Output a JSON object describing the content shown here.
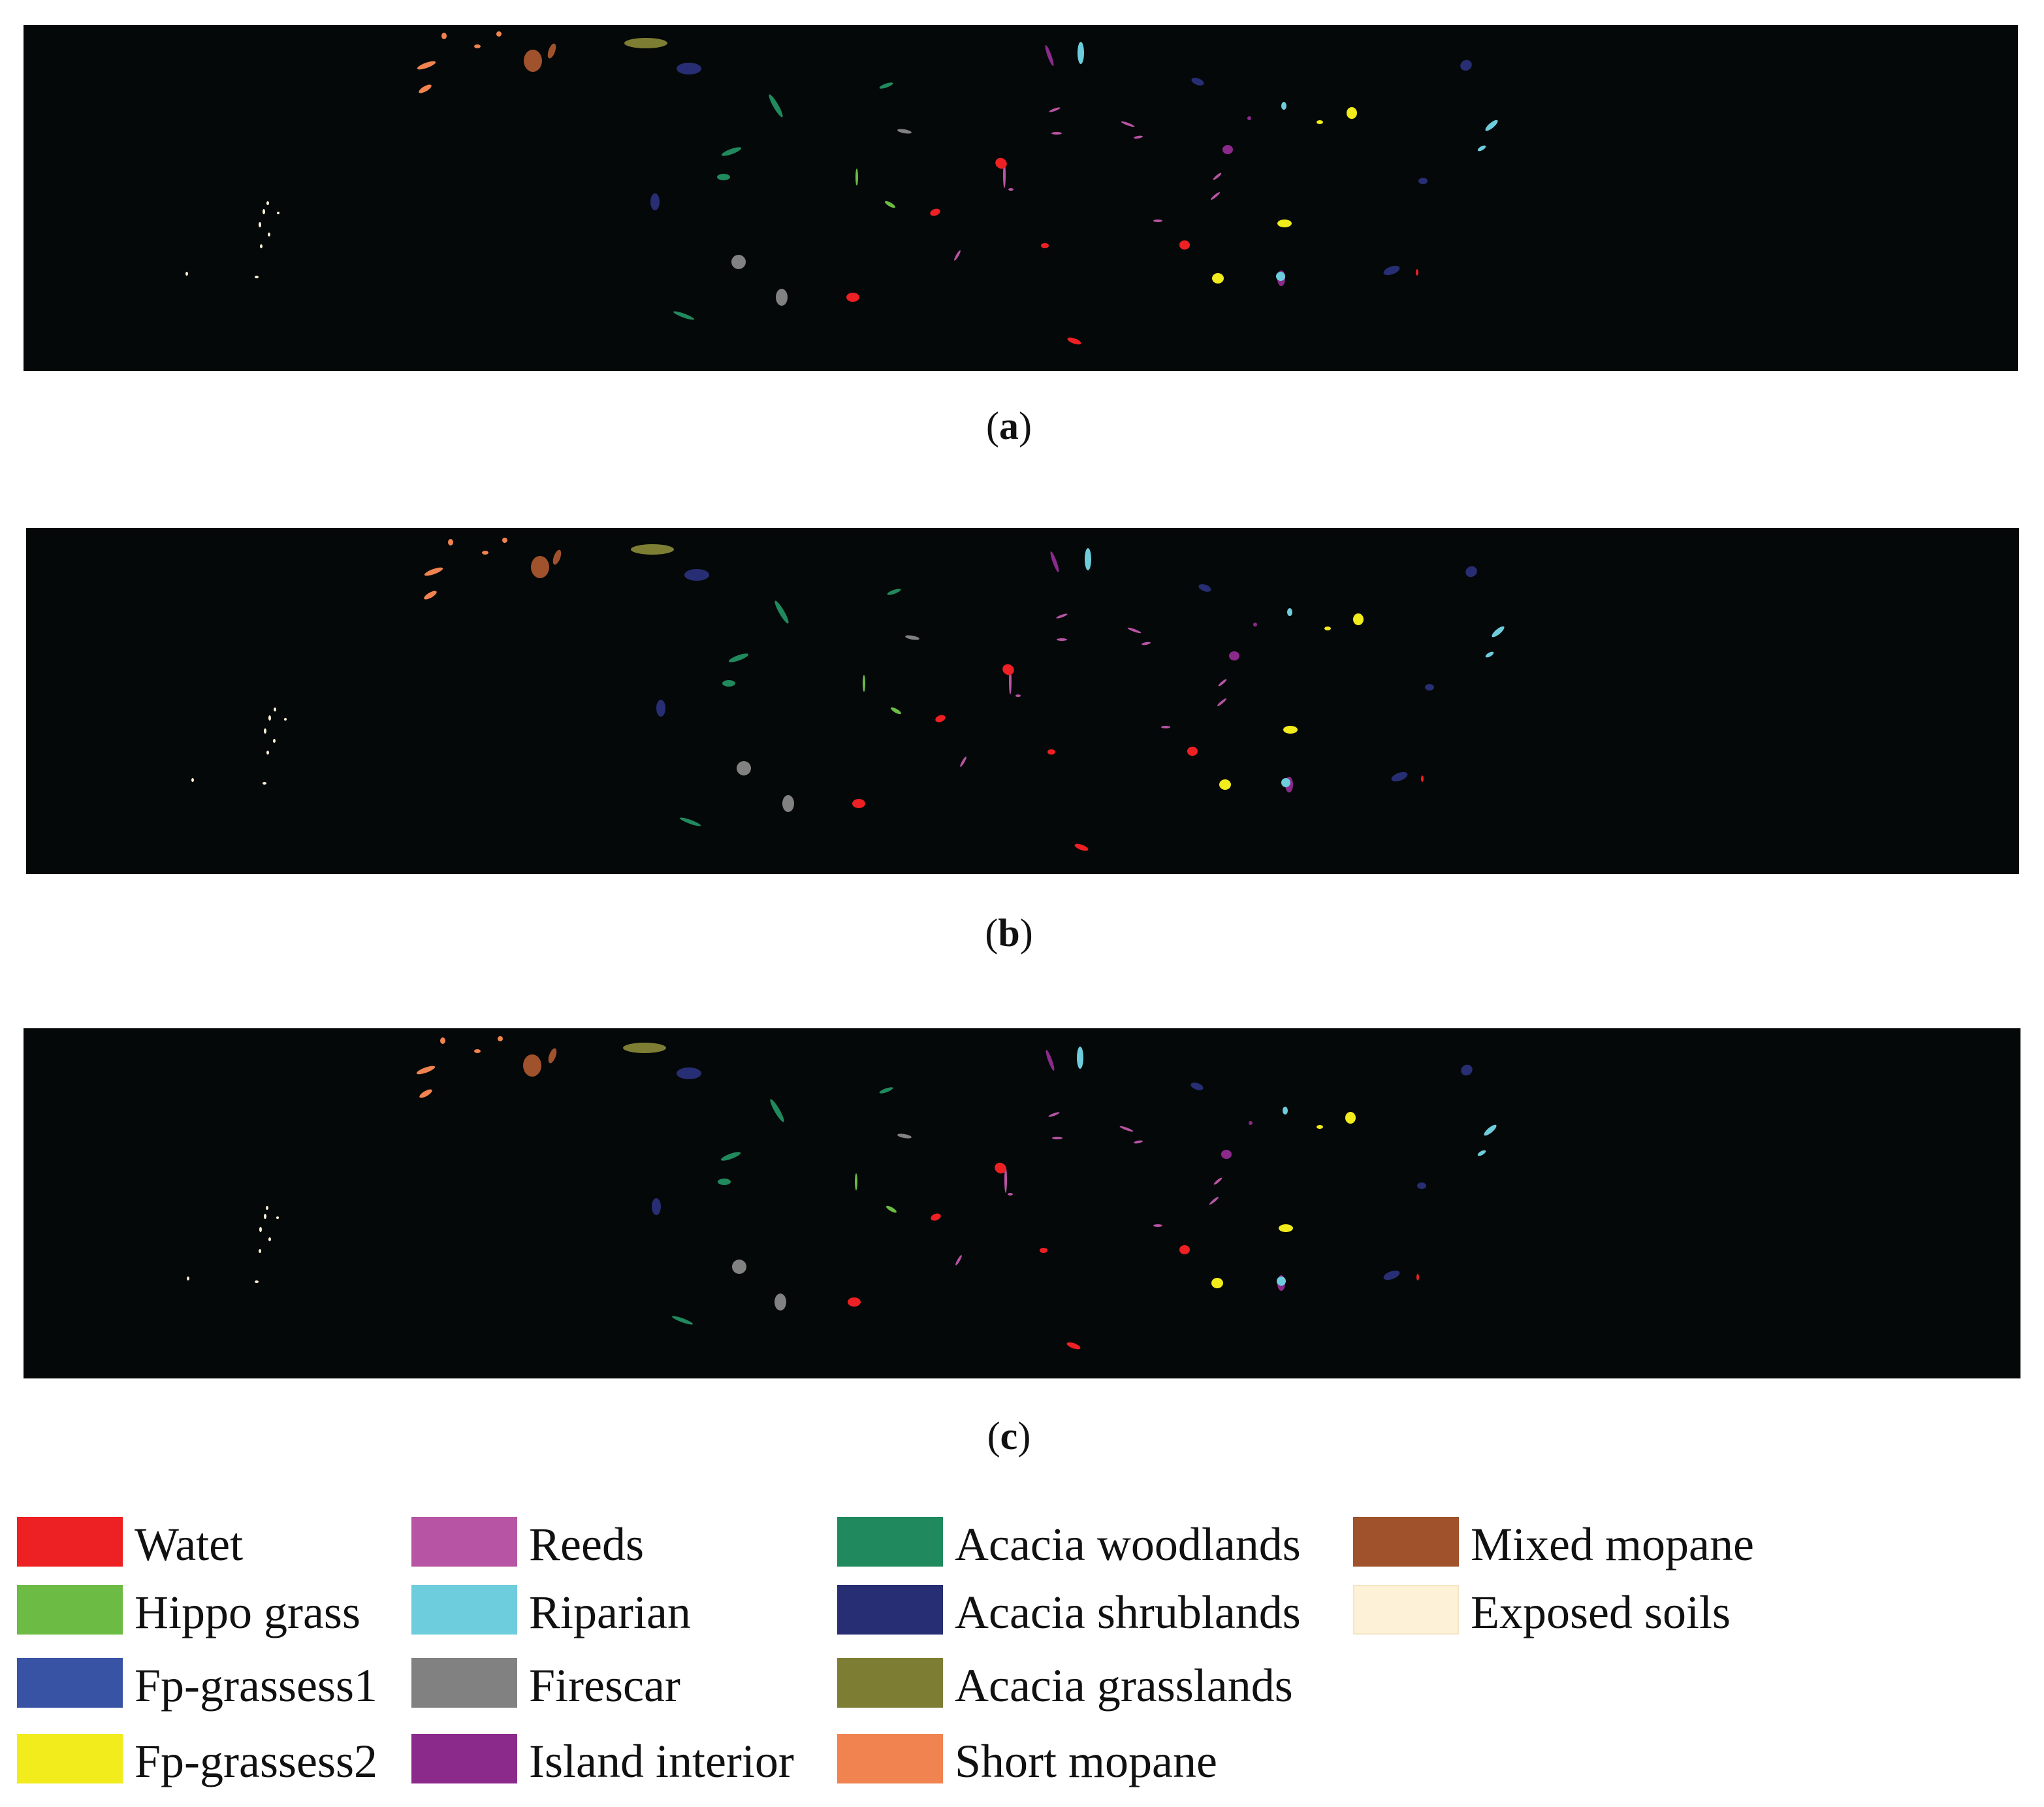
{
  "panels": [
    {
      "id": "a",
      "label": "a"
    },
    {
      "id": "b",
      "label": "b"
    },
    {
      "id": "c",
      "label": "c"
    }
  ],
  "legend": [
    {
      "label": "Watet",
      "color": "#ed2024"
    },
    {
      "label": "Hippo grass",
      "color": "#6cbb45"
    },
    {
      "label": "Fp-grassess1",
      "color": "#3953a4"
    },
    {
      "label": "Fp-grassess2",
      "color": "#f2ec1c"
    },
    {
      "label": "Reeds",
      "color": "#b854a4"
    },
    {
      "label": "Riparian",
      "color": "#6ecddc"
    },
    {
      "label": "Firescar",
      "color": "#818181"
    },
    {
      "label": "Island interior",
      "color": "#8b2a8b"
    },
    {
      "label": "Acacia woodlands",
      "color": "#20895d"
    },
    {
      "label": "Acacia shrublands",
      "color": "#272e73"
    },
    {
      "label": "Acacia grasslands",
      "color": "#7d7e34"
    },
    {
      "label": "Short mopane",
      "color": "#f0834f"
    },
    {
      "label": "Mixed mopane",
      "color": "#a0522d"
    },
    {
      "label": "Exposed soils",
      "color": "#fdf1d8"
    }
  ]
}
